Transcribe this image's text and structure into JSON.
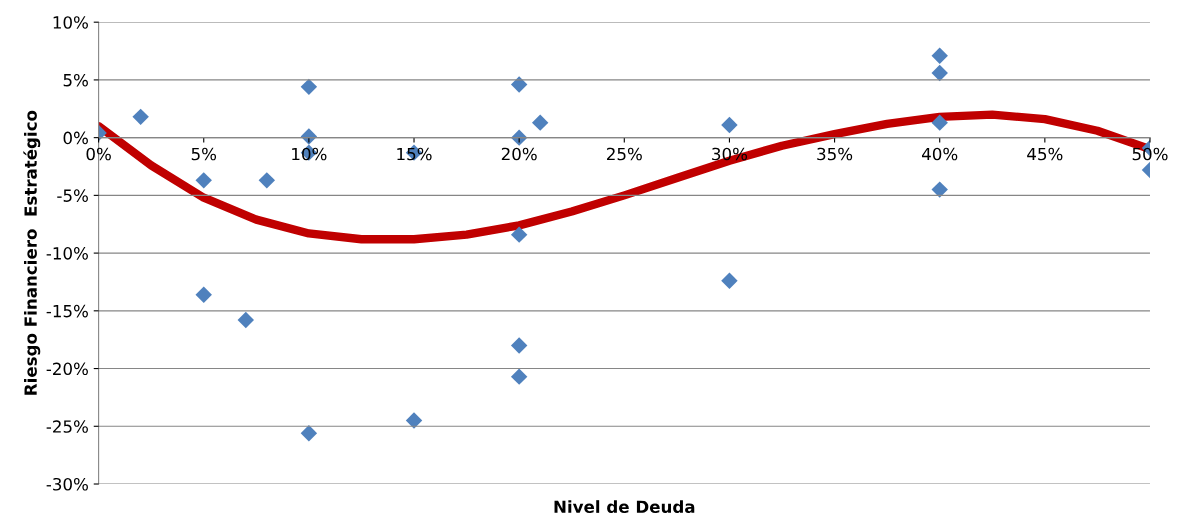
{
  "chart_data": {
    "type": "scatter",
    "xlabel": "Nivel de Deuda",
    "ylabel": "Riesgo Financiero  Estratégico",
    "xlim": [
      0,
      50
    ],
    "ylim": [
      -30,
      10
    ],
    "xticks": [
      {
        "value": 0,
        "label": "0%"
      },
      {
        "value": 5,
        "label": "5%"
      },
      {
        "value": 10,
        "label": "10%"
      },
      {
        "value": 15,
        "label": "15%"
      },
      {
        "value": 20,
        "label": "20%"
      },
      {
        "value": 25,
        "label": "25%"
      },
      {
        "value": 30,
        "label": "30%"
      },
      {
        "value": 35,
        "label": "35%"
      },
      {
        "value": 40,
        "label": "40%"
      },
      {
        "value": 45,
        "label": "45%"
      },
      {
        "value": 50,
        "label": "50%"
      }
    ],
    "yticks": [
      {
        "value": -30,
        "label": "-30%"
      },
      {
        "value": -25,
        "label": "-25%"
      },
      {
        "value": -20,
        "label": "-20%"
      },
      {
        "value": -15,
        "label": "-15%"
      },
      {
        "value": -10,
        "label": "-10%"
      },
      {
        "value": -5,
        "label": "-5%"
      },
      {
        "value": 0,
        "label": "0%"
      },
      {
        "value": 5,
        "label": "5%"
      },
      {
        "value": 10,
        "label": "10%"
      }
    ],
    "grid": "y",
    "legend": false,
    "series": [
      {
        "color": "#4f81bd",
        "marker": "diamond",
        "x": [
          0,
          2,
          5,
          5,
          7,
          8,
          10,
          10,
          10,
          10,
          15,
          15,
          20,
          20,
          20,
          20,
          20,
          21,
          30,
          30,
          40,
          40,
          40,
          40,
          50,
          50
        ],
        "values": [
          0.4,
          1.8,
          -3.7,
          -13.6,
          -15.8,
          -3.7,
          4.4,
          0.1,
          -1.3,
          -25.6,
          -1.3,
          -24.5,
          4.6,
          0,
          -8.4,
          -18,
          -20.7,
          1.3,
          1.1,
          -12.4,
          7.1,
          5.6,
          1.3,
          -4.5,
          -0.9,
          -2.8
        ]
      },
      {
        "type": "line",
        "color": "#c00000",
        "marker": "none",
        "line_style": "solid",
        "x": [
          0,
          2.5,
          5,
          7.5,
          10,
          12.5,
          15,
          17.5,
          20,
          22.5,
          25,
          27.5,
          30,
          32.5,
          35,
          37.5,
          40,
          42.5,
          45,
          47.5,
          50
        ],
        "values": [
          1,
          -2.4,
          -5.2,
          -7.1,
          -8.3,
          -8.8,
          -8.8,
          -8.4,
          -7.6,
          -6.4,
          -5,
          -3.5,
          -2,
          -0.7,
          0.3,
          1.2,
          1.8,
          2,
          1.6,
          0.6,
          -1
        ]
      }
    ]
  }
}
